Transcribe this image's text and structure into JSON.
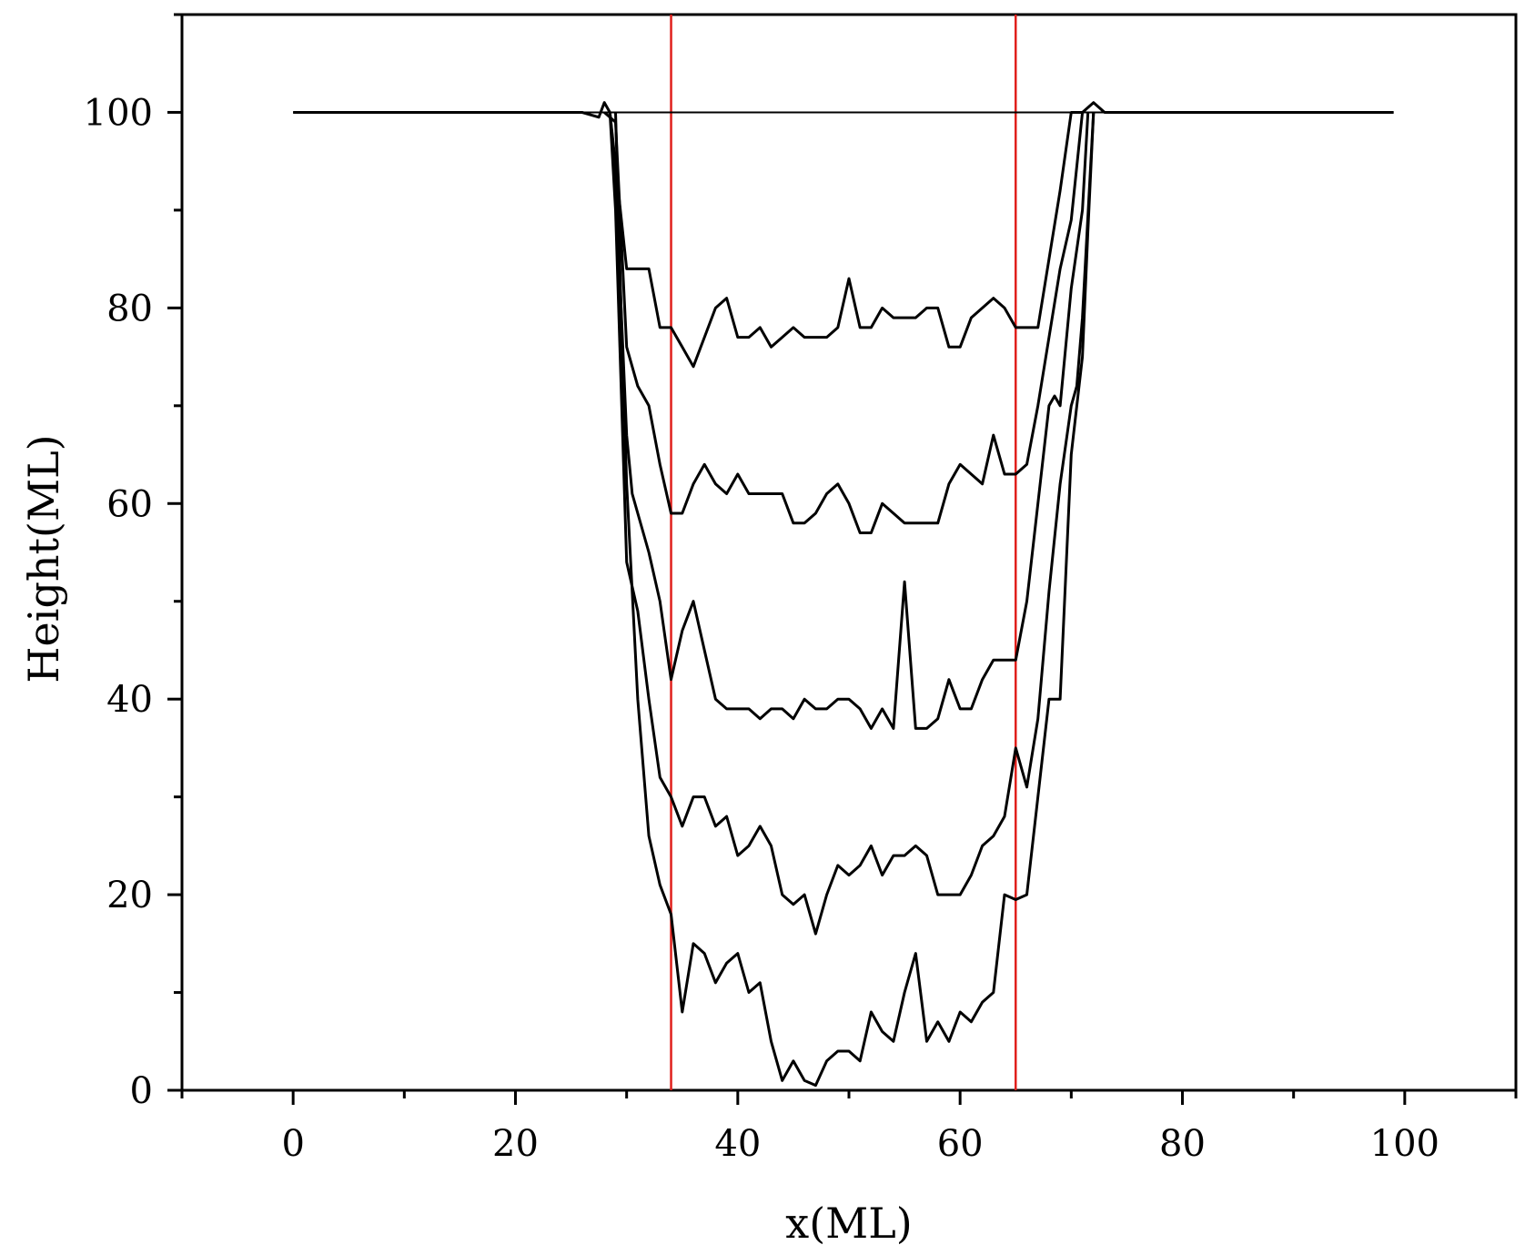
{
  "chart_data": {
    "type": "line",
    "xlabel": "x(ML)",
    "ylabel": "Height(ML)",
    "xlim": [
      -10,
      110
    ],
    "ylim": [
      0,
      110
    ],
    "xticks": [
      0,
      20,
      40,
      60,
      80,
      100
    ],
    "yticks": [
      0,
      20,
      40,
      60,
      80,
      100
    ],
    "grid": false,
    "legend": "none",
    "colors": {
      "profile": "#000000",
      "marker": "#e0201c"
    },
    "vlines": [
      34,
      65
    ],
    "hline": {
      "y": 100,
      "x": [
        0,
        99
      ]
    },
    "series": [
      {
        "points": [
          [
            0,
            100
          ],
          [
            26,
            100
          ],
          [
            27.5,
            99.5
          ],
          [
            28,
            101
          ],
          [
            28.5,
            100
          ],
          [
            30,
            84
          ],
          [
            32,
            84
          ],
          [
            33,
            78
          ],
          [
            34,
            78
          ],
          [
            35,
            76
          ],
          [
            36,
            74
          ],
          [
            37,
            77
          ],
          [
            38,
            80
          ],
          [
            39,
            81
          ],
          [
            40,
            77
          ],
          [
            41,
            77
          ],
          [
            42,
            78
          ],
          [
            43,
            76
          ],
          [
            44,
            77
          ],
          [
            45,
            78
          ],
          [
            46,
            77
          ],
          [
            48,
            77
          ],
          [
            49,
            78
          ],
          [
            50,
            83
          ],
          [
            51,
            78
          ],
          [
            52,
            78
          ],
          [
            53,
            80
          ],
          [
            54,
            79
          ],
          [
            56,
            79
          ],
          [
            57,
            80
          ],
          [
            58,
            80
          ],
          [
            59,
            76
          ],
          [
            60,
            76
          ],
          [
            61,
            79
          ],
          [
            62,
            80
          ],
          [
            63,
            81
          ],
          [
            64,
            80
          ],
          [
            65,
            78
          ],
          [
            67,
            78
          ],
          [
            68,
            85
          ],
          [
            69,
            92
          ],
          [
            70,
            100
          ],
          [
            71,
            100
          ],
          [
            72,
            101
          ],
          [
            73,
            100
          ],
          [
            74,
            100
          ],
          [
            75,
            100
          ],
          [
            99,
            100
          ]
        ]
      },
      {
        "points": [
          [
            28,
            100
          ],
          [
            29,
            99
          ],
          [
            30,
            76
          ],
          [
            31,
            72
          ],
          [
            32,
            70
          ],
          [
            33,
            64
          ],
          [
            34,
            59
          ],
          [
            35,
            59
          ],
          [
            36,
            62
          ],
          [
            37,
            64
          ],
          [
            38,
            62
          ],
          [
            39,
            61
          ],
          [
            40,
            63
          ],
          [
            41,
            61
          ],
          [
            43,
            61
          ],
          [
            44,
            61
          ],
          [
            45,
            58
          ],
          [
            46,
            58
          ],
          [
            47,
            59
          ],
          [
            48,
            61
          ],
          [
            49,
            62
          ],
          [
            50,
            60
          ],
          [
            51,
            57
          ],
          [
            52,
            57
          ],
          [
            53,
            60
          ],
          [
            54,
            59
          ],
          [
            55,
            58
          ],
          [
            58,
            58
          ],
          [
            59,
            62
          ],
          [
            60,
            64
          ],
          [
            61,
            63
          ],
          [
            62,
            62
          ],
          [
            63,
            67
          ],
          [
            64,
            63
          ],
          [
            65,
            63
          ],
          [
            66,
            64
          ],
          [
            67,
            70
          ],
          [
            68,
            77
          ],
          [
            69,
            84
          ],
          [
            70,
            89
          ],
          [
            71,
            100
          ]
        ]
      },
      {
        "points": [
          [
            28.5,
            100
          ],
          [
            29,
            94
          ],
          [
            29.5,
            80
          ],
          [
            30,
            67
          ],
          [
            30.5,
            61
          ],
          [
            31,
            59
          ],
          [
            32,
            55
          ],
          [
            33,
            50
          ],
          [
            34,
            42
          ],
          [
            35,
            47
          ],
          [
            36,
            50
          ],
          [
            37,
            45
          ],
          [
            38,
            40
          ],
          [
            39,
            39
          ],
          [
            41,
            39
          ],
          [
            42,
            38
          ],
          [
            43,
            39
          ],
          [
            44,
            39
          ],
          [
            45,
            38
          ],
          [
            46,
            40
          ],
          [
            47,
            39
          ],
          [
            48,
            39
          ],
          [
            49,
            40
          ],
          [
            50,
            40
          ],
          [
            51,
            39
          ],
          [
            52,
            37
          ],
          [
            53,
            39
          ],
          [
            54,
            37
          ],
          [
            55,
            52
          ],
          [
            56,
            37
          ],
          [
            57,
            37
          ],
          [
            58,
            38
          ],
          [
            59,
            42
          ],
          [
            60,
            39
          ],
          [
            61,
            39
          ],
          [
            62,
            42
          ],
          [
            63,
            44
          ],
          [
            65,
            44
          ],
          [
            66,
            50
          ],
          [
            67,
            60
          ],
          [
            68,
            70
          ],
          [
            68.5,
            71
          ],
          [
            69,
            70
          ],
          [
            70,
            82
          ],
          [
            71,
            90
          ],
          [
            71.5,
            100
          ]
        ]
      },
      {
        "points": [
          [
            28.5,
            100
          ],
          [
            29,
            90
          ],
          [
            29.5,
            72
          ],
          [
            30,
            54
          ],
          [
            31,
            49
          ],
          [
            32,
            40
          ],
          [
            33,
            32
          ],
          [
            34,
            30
          ],
          [
            35,
            27
          ],
          [
            36,
            30
          ],
          [
            37,
            30
          ],
          [
            38,
            27
          ],
          [
            39,
            28
          ],
          [
            40,
            24
          ],
          [
            41,
            25
          ],
          [
            42,
            27
          ],
          [
            43,
            25
          ],
          [
            44,
            20
          ],
          [
            45,
            19
          ],
          [
            46,
            20
          ],
          [
            47,
            16
          ],
          [
            48,
            20
          ],
          [
            49,
            23
          ],
          [
            50,
            22
          ],
          [
            51,
            23
          ],
          [
            52,
            25
          ],
          [
            53,
            22
          ],
          [
            54,
            24
          ],
          [
            55,
            24
          ],
          [
            56,
            25
          ],
          [
            57,
            24
          ],
          [
            58,
            20
          ],
          [
            60,
            20
          ],
          [
            61,
            22
          ],
          [
            62,
            25
          ],
          [
            63,
            26
          ],
          [
            64,
            28
          ],
          [
            65,
            35
          ],
          [
            66,
            31
          ],
          [
            67,
            38
          ],
          [
            68,
            51
          ],
          [
            69,
            62
          ],
          [
            70,
            70
          ],
          [
            70.5,
            72
          ],
          [
            71,
            79
          ],
          [
            72,
            100
          ]
        ]
      },
      {
        "points": [
          [
            29,
            100
          ],
          [
            29.5,
            80
          ],
          [
            30,
            62
          ],
          [
            31,
            40
          ],
          [
            32,
            26
          ],
          [
            33,
            21
          ],
          [
            34,
            18
          ],
          [
            35,
            8
          ],
          [
            36,
            15
          ],
          [
            37,
            14
          ],
          [
            38,
            11
          ],
          [
            39,
            13
          ],
          [
            40,
            14
          ],
          [
            41,
            10
          ],
          [
            42,
            11
          ],
          [
            43,
            5
          ],
          [
            44,
            1
          ],
          [
            45,
            3
          ],
          [
            46,
            1
          ],
          [
            47,
            0.5
          ],
          [
            48,
            3
          ],
          [
            49,
            4
          ],
          [
            50,
            4
          ],
          [
            51,
            3
          ],
          [
            52,
            8
          ],
          [
            53,
            6
          ],
          [
            54,
            5
          ],
          [
            55,
            10
          ],
          [
            56,
            14
          ],
          [
            57,
            5
          ],
          [
            58,
            7
          ],
          [
            59,
            5
          ],
          [
            60,
            8
          ],
          [
            61,
            7
          ],
          [
            62,
            9
          ],
          [
            63,
            10
          ],
          [
            64,
            20
          ],
          [
            65,
            19.5
          ],
          [
            66,
            20
          ],
          [
            67,
            30
          ],
          [
            68,
            40
          ],
          [
            69,
            40
          ],
          [
            70,
            65
          ],
          [
            71,
            75
          ],
          [
            71.5,
            88
          ],
          [
            72,
            100
          ]
        ]
      }
    ]
  }
}
